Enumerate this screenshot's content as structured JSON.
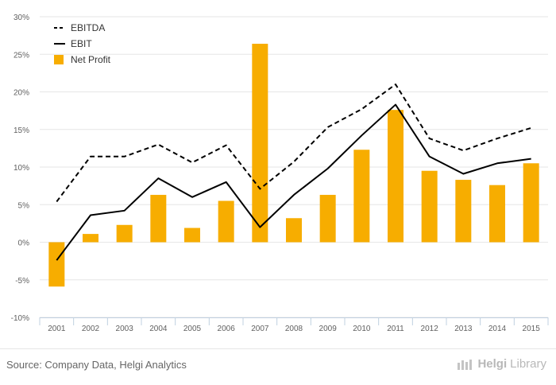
{
  "chart_data": {
    "type": "bar",
    "categories": [
      "2001",
      "2002",
      "2003",
      "2004",
      "2005",
      "2006",
      "2007",
      "2008",
      "2009",
      "2010",
      "2011",
      "2012",
      "2013",
      "2014",
      "2015"
    ],
    "series": [
      {
        "name": "EBITDA",
        "kind": "line",
        "style": "dashed",
        "color": "#000000",
        "values": [
          5.4,
          11.4,
          11.4,
          13.0,
          10.6,
          12.9,
          7.1,
          10.7,
          15.3,
          17.7,
          21.0,
          13.8,
          12.2,
          13.8,
          15.2
        ]
      },
      {
        "name": "EBIT",
        "kind": "line",
        "style": "solid",
        "color": "#000000",
        "values": [
          -2.4,
          3.6,
          4.2,
          8.5,
          6.0,
          8.0,
          2.0,
          6.3,
          9.8,
          14.2,
          18.3,
          11.4,
          9.1,
          10.5,
          11.1
        ]
      },
      {
        "name": "Net Profit",
        "kind": "bar",
        "color": "#f7ad00",
        "values": [
          -5.9,
          1.1,
          2.3,
          6.3,
          1.9,
          5.5,
          26.4,
          3.2,
          6.3,
          12.3,
          17.6,
          9.5,
          8.3,
          7.6,
          10.5
        ]
      }
    ],
    "y_ticks": [
      "30%",
      "25%",
      "20%",
      "15%",
      "10%",
      "5%",
      "0%",
      "-5%",
      "-10%"
    ],
    "ylim": [
      -10,
      30
    ],
    "grid": true,
    "legend_position": "top-left",
    "xlabel": "",
    "ylabel": ""
  },
  "footer": {
    "source": "Source: Company Data, Helgi Analytics",
    "brand_prefix": "Helgi",
    "brand_suffix": "Library"
  }
}
